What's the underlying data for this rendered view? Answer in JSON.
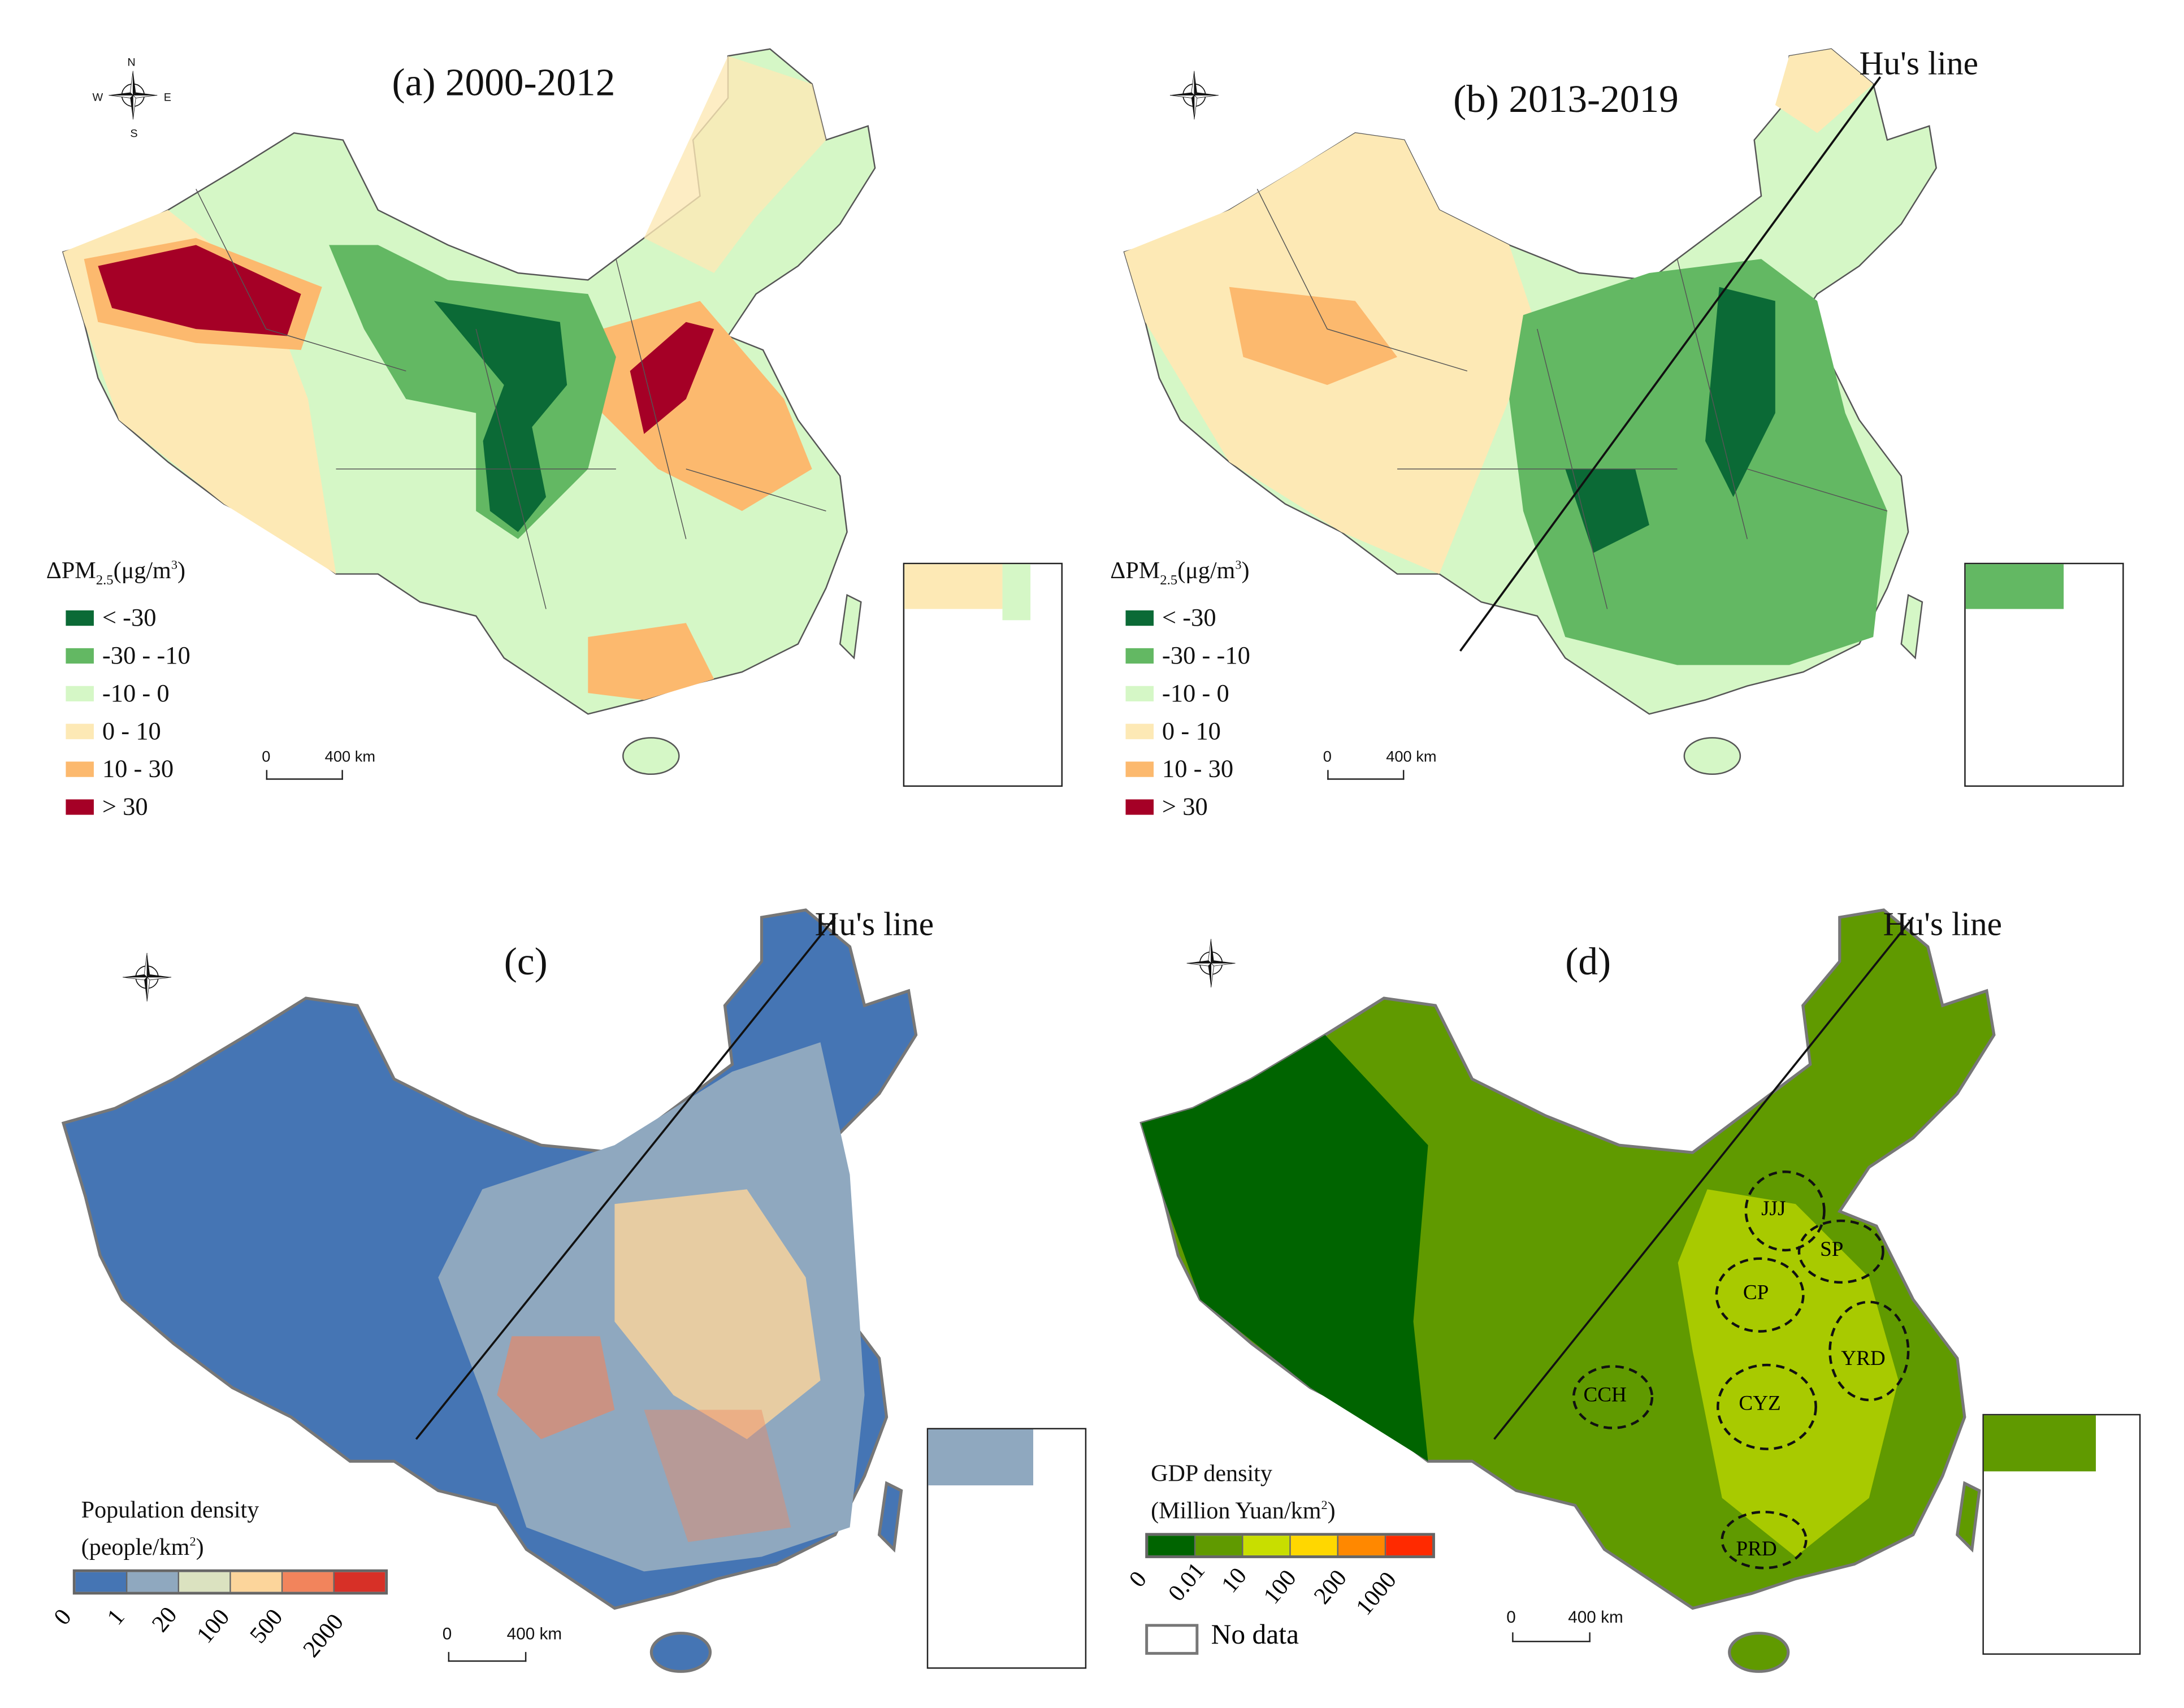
{
  "panels": {
    "a": {
      "title": "(a) 2000-2012"
    },
    "b": {
      "title": "(b) 2013-2019",
      "hu_line": "Hu's line"
    },
    "c": {
      "title": "(c)",
      "hu_line": "Hu's line"
    },
    "d": {
      "title": "(d)",
      "hu_line": "Hu's line"
    }
  },
  "compass": {
    "n": "N",
    "s": "S",
    "e": "E",
    "w": "W"
  },
  "scale_bar": {
    "zero": "0",
    "a_label": "400 km",
    "c_label": "400 km",
    "d_label": "400 km"
  },
  "pm_legend": {
    "title_prefix": "ΔPM",
    "title_sub": "2.5",
    "title_unit": "(μg/m",
    "title_sup": "3",
    "title_close": ")",
    "items": [
      {
        "label": "< -30",
        "color": "#0b6a36"
      },
      {
        "label": "-30 - -10",
        "color": "#63b863"
      },
      {
        "label": "-10 - 0",
        "color": "#d5f7c6"
      },
      {
        "label": "0 - 10",
        "color": "#fde9b5"
      },
      {
        "label": "10 - 30",
        "color": "#fcb96e"
      },
      {
        "label": "> 30",
        "color": "#a50026"
      }
    ]
  },
  "pop_legend": {
    "title_line1": "Population density",
    "title_line2_pre": "(people/km",
    "title_sup": "2",
    "title_close": ")",
    "colors": [
      "#4575b4",
      "#8fa8bf",
      "#dbe2c0",
      "#fcd59b",
      "#f2845c",
      "#d73027"
    ],
    "ticks": [
      "0",
      "1",
      "20",
      "100",
      "500",
      "2000"
    ]
  },
  "gdp_legend": {
    "title_line1": "GDP density",
    "title_line2_pre": "(Million Yuan/km",
    "title_sup": "2",
    "title_close": ")",
    "colors": [
      "#006400",
      "#609a00",
      "#c8de00",
      "#ffd700",
      "#ff8800",
      "#ff2a00"
    ],
    "ticks": [
      "0",
      "0.01",
      "10",
      "100",
      "200",
      "1000"
    ],
    "no_data": "No data"
  },
  "regions": [
    "JJJ",
    "SP",
    "CP",
    "YRD",
    "CCH",
    "CYZ",
    "PRD"
  ]
}
